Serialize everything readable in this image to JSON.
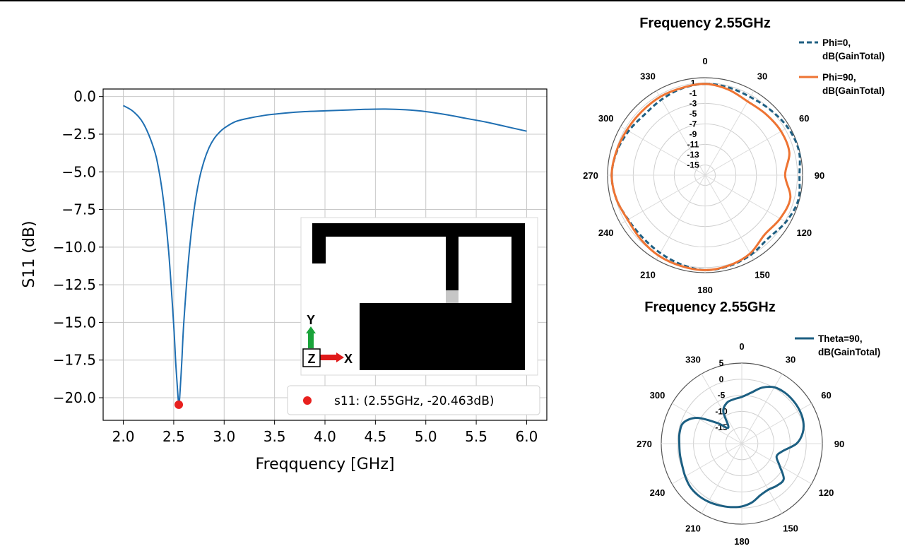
{
  "chart_data": [
    {
      "type": "line",
      "xlabel": "Freqquency [GHz]",
      "ylabel": "S11 (dB)",
      "xlim": [
        1.8,
        6.2
      ],
      "ylim": [
        -21.5,
        0.5
      ],
      "xticks": [
        "2.0",
        "2.5",
        "3.0",
        "3.5",
        "4.0",
        "4.5",
        "5.0",
        "5.5",
        "6.0"
      ],
      "yticks": [
        "0.0",
        "−2.5",
        "−5.0",
        "−7.5",
        "−10.0",
        "−12.5",
        "−15.0",
        "−17.5",
        "−20.0"
      ],
      "ytick_values": [
        0,
        -2.5,
        -5,
        -7.5,
        -10,
        -12.5,
        -15,
        -17.5,
        -20
      ],
      "xtick_values": [
        2.0,
        2.5,
        3.0,
        3.5,
        4.0,
        4.5,
        5.0,
        5.5,
        6.0
      ],
      "grid": true,
      "line_color": "#1f6fb2",
      "series": [
        {
          "x": [
            2.0,
            2.1,
            2.2,
            2.3,
            2.35,
            2.4,
            2.45,
            2.5,
            2.52,
            2.54,
            2.55,
            2.56,
            2.58,
            2.6,
            2.65,
            2.7,
            2.75,
            2.8,
            2.85,
            2.9,
            2.95,
            3.0,
            3.1,
            3.2,
            3.4,
            3.6,
            3.8,
            4.0,
            4.2,
            4.4,
            4.6,
            4.8,
            5.0,
            5.2,
            5.4,
            5.6,
            5.8,
            6.0
          ],
          "y": [
            -0.6,
            -1.0,
            -1.8,
            -3.4,
            -4.8,
            -7.0,
            -10.3,
            -15.2,
            -17.7,
            -19.7,
            -20.4,
            -19.9,
            -17.6,
            -15.0,
            -10.6,
            -7.6,
            -5.6,
            -4.3,
            -3.4,
            -2.8,
            -2.4,
            -2.1,
            -1.7,
            -1.5,
            -1.25,
            -1.1,
            -1.0,
            -0.95,
            -0.9,
            -0.85,
            -0.83,
            -0.88,
            -1.0,
            -1.2,
            -1.45,
            -1.7,
            -2.0,
            -2.3
          ]
        }
      ],
      "marker": {
        "x": 2.55,
        "y": -20.463,
        "color": "#e8201e"
      },
      "legend": {
        "label": "s11: (2.55GHz, -20.463dB)",
        "position": "bottom-right"
      },
      "inset": {
        "axis_y": "Y",
        "axis_x": "X",
        "axis_z": "Z",
        "y_arrow_color": "#1aa33a",
        "x_arrow_color": "#e01a1a",
        "feed_color": "#c6c6c6"
      }
    },
    {
      "type": "polar",
      "title": "Frequency 2.55GHz",
      "angle_labels": [
        "0",
        "30",
        "60",
        "90",
        "120",
        "150",
        "180",
        "210",
        "240",
        "270",
        "300",
        "330"
      ],
      "radial_labels": [
        "1",
        "-1",
        "-3",
        "-5",
        "-7",
        "-9",
        "-11",
        "-13",
        "-15"
      ],
      "rlim": [
        -17,
        2
      ],
      "series": [
        {
          "name": "Phi=0, dB(GainTotal)",
          "name_line1": "Phi=0,",
          "name_line2": "dB(GainTotal)",
          "color": "#1f5f82",
          "dash": true,
          "theta": [
            0,
            15,
            30,
            45,
            60,
            75,
            90,
            105,
            120,
            135,
            150,
            165,
            180,
            195,
            210,
            225,
            240,
            255,
            270,
            285,
            300,
            315,
            330,
            345
          ],
          "r": [
            0.8,
            0.7,
            0.6,
            1.0,
            1.6,
            1.9,
            1.4,
            1.8,
            1.2,
            0.4,
            0.9,
            1.3,
            1.5,
            1.0,
            0.5,
            0.2,
            0.3,
            0.9,
            1.2,
            0.8,
            0.2,
            -0.3,
            0.0,
            0.5
          ]
        },
        {
          "name": "Phi=90, dB(GainTotal)",
          "name_line1": "Phi=90,",
          "name_line2": "dB(GainTotal)",
          "color": "#ee7433",
          "dash": false,
          "theta": [
            0,
            15,
            30,
            45,
            60,
            75,
            90,
            105,
            120,
            135,
            150,
            165,
            180,
            195,
            210,
            225,
            240,
            255,
            270,
            285,
            300,
            315,
            330,
            345
          ],
          "r": [
            0.8,
            0.3,
            -0.4,
            -0.2,
            0.1,
            0.0,
            -1.4,
            0.2,
            -0.1,
            -0.6,
            0.6,
            1.2,
            1.5,
            1.3,
            1.1,
            0.7,
            0.4,
            0.9,
            1.2,
            0.9,
            0.6,
            0.5,
            0.6,
            0.6
          ]
        }
      ]
    },
    {
      "type": "polar",
      "title": "Frequency 2.55GHz",
      "angle_labels": [
        "0",
        "30",
        "60",
        "90",
        "120",
        "150",
        "180",
        "210",
        "240",
        "270",
        "300",
        "330"
      ],
      "radial_labels": [
        "5",
        "0",
        "-5",
        "-10",
        "-15"
      ],
      "rlim": [
        -20,
        5
      ],
      "series": [
        {
          "name": "Theta=90, dB(GainTotal)",
          "name_line1": "Theta=90,",
          "name_line2": "dB(GainTotal)",
          "color": "#1c5f82",
          "dash": false,
          "theta": [
            0,
            10,
            20,
            30,
            40,
            50,
            60,
            70,
            80,
            90,
            100,
            110,
            120,
            130,
            140,
            150,
            160,
            170,
            180,
            190,
            200,
            210,
            220,
            230,
            240,
            250,
            260,
            270,
            280,
            290,
            300,
            310,
            320,
            330,
            340,
            350
          ],
          "r": [
            -5.5,
            -4.0,
            -1.5,
            0.2,
            0.7,
            0.8,
            0.7,
            0.3,
            -0.8,
            -3.0,
            -7.0,
            -8.5,
            -6.5,
            -3.0,
            -3.0,
            -3.5,
            -3.0,
            -1.5,
            -0.5,
            0.0,
            0.4,
            0.8,
            1.0,
            0.9,
            0.3,
            -0.3,
            -0.5,
            -0.6,
            -0.4,
            -0.8,
            -4.0,
            -10.0,
            -13.5,
            -8.5,
            -6.5,
            -6.0
          ]
        }
      ]
    }
  ]
}
